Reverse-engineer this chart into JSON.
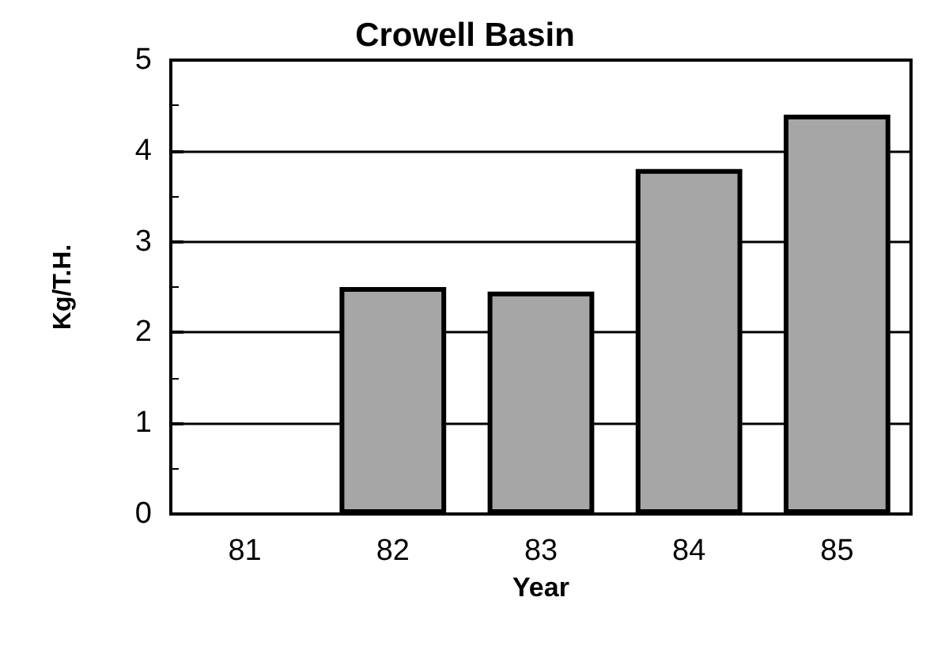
{
  "chart_data": {
    "type": "bar",
    "title": "Crowell Basin",
    "xlabel": "Year",
    "ylabel": "Kg/T.H.",
    "categories": [
      "81",
      "82",
      "83",
      "84",
      "85"
    ],
    "values": [
      null,
      2.5,
      2.45,
      3.8,
      4.4
    ],
    "color": "#a6a6a6",
    "ylim": [
      0,
      5
    ],
    "yticks": [
      0,
      1,
      2,
      3,
      4,
      5
    ],
    "grid": "y"
  }
}
